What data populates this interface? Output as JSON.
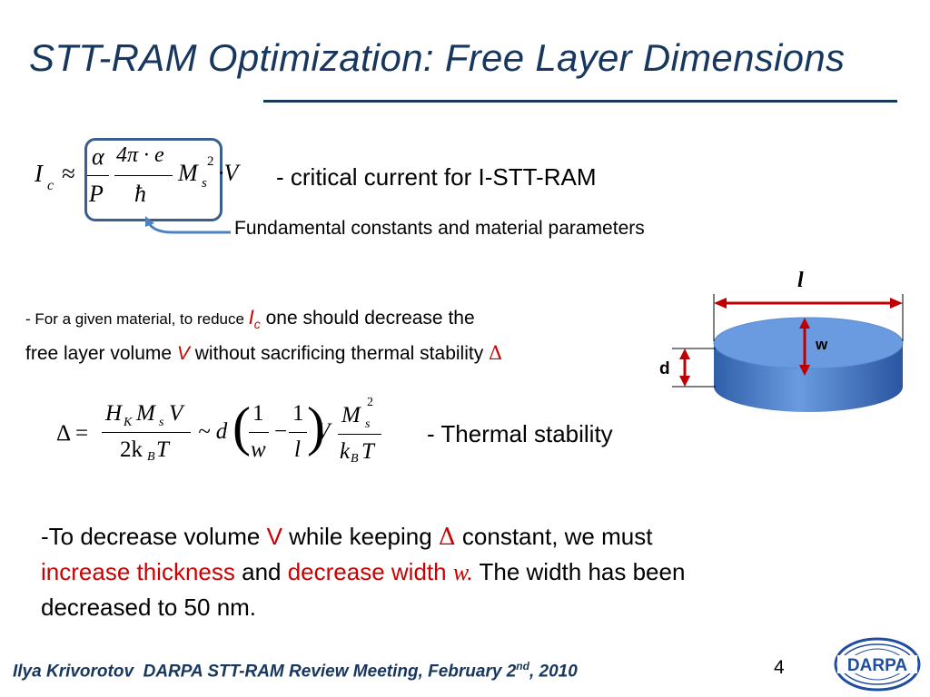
{
  "slide": {
    "title": "STT-RAM Optimization: Free Layer Dimensions",
    "page_number": "4"
  },
  "eq1": {
    "lhs": "I",
    "lhs_sub": "c",
    "approx": "≈",
    "num1": "α",
    "den1": "P",
    "num2": "4π · e",
    "den2": "ħ",
    "ms": "M",
    "ms_sub": "s",
    "ms_sup": "2",
    "times_v": "·V"
  },
  "caption_critical": "- critical current for I-STT-RAM",
  "caption_constants": "Fundamental constants and material parameters",
  "para1": {
    "part1": "- For a given material, to reduce ",
    "ic": "I",
    "ic_sub": "c",
    "part2": " one should decrease the",
    "part3": "free layer volume ",
    "v": "V",
    "part4": " without sacrificing thermal stability ",
    "delta": "Δ"
  },
  "eq2": {
    "delta": "Δ =",
    "num1": "H",
    "num1_sub": "K",
    "num1_b": "M",
    "num1_sub2": "s",
    "num1_c": "V",
    "den1": "2k",
    "den1_sub": "B",
    "den1_b": "T",
    "tilde": "~ d",
    "f1_num": "1",
    "f1_den": "w",
    "minus": "−",
    "f2_num": "1",
    "f2_den": "l",
    "v": "V",
    "f3_num": "M",
    "f3_num_sub": "s",
    "f3_num_sup": "2",
    "f3_den": "k",
    "f3_den_sub": "B",
    "f3_den_b": "T",
    "paren_left": "(",
    "paren_right": ")"
  },
  "caption_thermal": "- Thermal stability",
  "para2": {
    "s1": "-To decrease volume  ",
    "v": "V",
    "s2": " while keeping ",
    "delta": "Δ",
    "s3": " constant, we must",
    "r1": "increase thickness",
    "s4": " and ",
    "r2": "decrease width ",
    "w": "w.",
    "s5": " The width has been",
    "s6": "decreased to 50 nm."
  },
  "diagram": {
    "label_l": "l",
    "label_w": "w",
    "label_d": "d",
    "disk_color": "#6a9be0",
    "arrow_color": "#c00000"
  },
  "footer": {
    "author": "Ilya Krivorotov",
    "meeting": "DARPA STT-RAM Review Meeting, February 2",
    "sup": "nd",
    "year": ", 2010"
  },
  "logo": {
    "text": "DARPA"
  }
}
